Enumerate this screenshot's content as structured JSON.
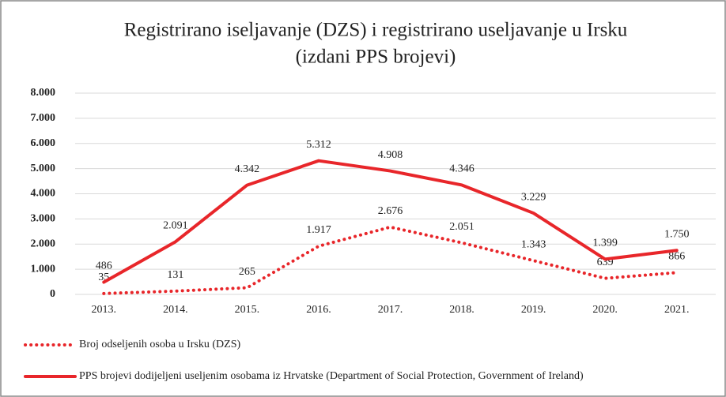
{
  "chart_data": {
    "type": "line",
    "title": [
      "Registrirano  iseljavanje  (DZS)  i registrirano  useljavanje  u Irsku",
      "(izdani PPS brojevi)"
    ],
    "categories": [
      "2013.",
      "2014.",
      "2015.",
      "2016.",
      "2017.",
      "2018.",
      "2019.",
      "2020.",
      "2021."
    ],
    "series": [
      {
        "name": "Broj odseljenih osoba u Irsku (DZS)",
        "color": "#e8262a",
        "style": "dotted",
        "values": [
          35,
          131,
          265,
          1917,
          2676,
          2051,
          1343,
          639,
          866
        ],
        "value_labels": [
          "35",
          "131",
          "265",
          "1.917",
          "2.676",
          "2.051",
          "1.343",
          "639",
          "866"
        ]
      },
      {
        "name": "PPS brojevi dodijeljeni useljenim osobama iz Hrvatske (Department of Social Protection, Government of Ireland)",
        "color": "#e8262a",
        "style": "solid",
        "values": [
          486,
          2091,
          4342,
          5312,
          4908,
          4346,
          3229,
          1399,
          1750
        ],
        "value_labels": [
          "486",
          "2.091",
          "4.342",
          "5.312",
          "4.908",
          "4.346",
          "3.229",
          "1.399",
          "1.750"
        ]
      }
    ],
    "ylim": [
      0,
      8000
    ],
    "yticks": [
      0,
      {
        "value": 1000,
        "label": "1.000"
      },
      {
        "value": 2000,
        "label": "2.000"
      },
      {
        "value": 3000,
        "label": "3.000"
      },
      {
        "value": 4000,
        "label": "4.000"
      },
      {
        "value": 5000,
        "label": "5.000"
      },
      {
        "value": 6000,
        "label": "6.000"
      },
      {
        "value": 7000,
        "label": "7.000"
      },
      {
        "value": 8000,
        "label": "8.000"
      }
    ],
    "grid": true
  }
}
